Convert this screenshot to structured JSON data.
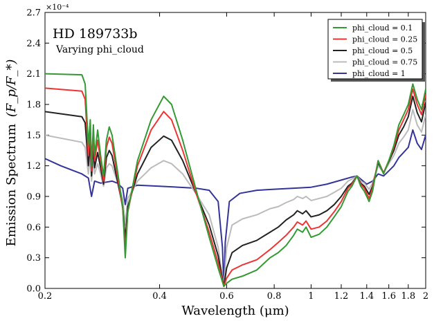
{
  "chart_data": {
    "type": "line",
    "xscale": "log",
    "xlabel": "Wavelength (μm)",
    "ylabel_main": "Emission Spectrum",
    "ylabel_math": "(F_p/F_*)",
    "offset_text": "×10⁻⁴",
    "xlim": [
      0.2,
      2.0
    ],
    "ylim": [
      0,
      2.7
    ],
    "x_ticks": [
      0.2,
      0.4,
      0.6,
      0.8,
      1.0,
      1.2,
      1.4,
      1.6,
      1.8,
      2.0
    ],
    "x_tick_labels": [
      "0.2",
      "0.4",
      "0.6",
      "0.8",
      "1",
      "1.2",
      "1.4",
      "1.6",
      "1.8",
      "2"
    ],
    "y_ticks": [
      0.0,
      0.3,
      0.6,
      0.9,
      1.2,
      1.5,
      1.8,
      2.1,
      2.4,
      2.7
    ],
    "y_tick_labels": [
      "0.0",
      "0.3",
      "0.6",
      "0.9",
      "1.2",
      "1.5",
      "1.8",
      "2.1",
      "2.4",
      "2.7"
    ],
    "annotations": [
      {
        "text": "HD 189733b",
        "size": "large"
      },
      {
        "text": "Varying phi_cloud",
        "size": "medium"
      }
    ],
    "legend_position": "top-right",
    "series": [
      {
        "name": "phi_cloud = 0.1",
        "color": "#339933",
        "points": [
          [
            0.2,
            2.1
          ],
          [
            0.25,
            2.09
          ],
          [
            0.255,
            2.0
          ],
          [
            0.26,
            1.4
          ],
          [
            0.263,
            1.65
          ],
          [
            0.265,
            1.2
          ],
          [
            0.268,
            1.6
          ],
          [
            0.27,
            1.3
          ],
          [
            0.275,
            1.55
          ],
          [
            0.28,
            1.3
          ],
          [
            0.285,
            1.1
          ],
          [
            0.29,
            1.45
          ],
          [
            0.295,
            1.58
          ],
          [
            0.3,
            1.5
          ],
          [
            0.31,
            1.15
          ],
          [
            0.32,
            0.8
          ],
          [
            0.325,
            0.3
          ],
          [
            0.33,
            0.75
          ],
          [
            0.35,
            1.25
          ],
          [
            0.38,
            1.65
          ],
          [
            0.41,
            1.88
          ],
          [
            0.43,
            1.8
          ],
          [
            0.46,
            1.45
          ],
          [
            0.5,
            0.95
          ],
          [
            0.54,
            0.5
          ],
          [
            0.57,
            0.2
          ],
          [
            0.59,
            0.02
          ],
          [
            0.6,
            0.05
          ],
          [
            0.62,
            0.09
          ],
          [
            0.66,
            0.12
          ],
          [
            0.72,
            0.18
          ],
          [
            0.78,
            0.3
          ],
          [
            0.82,
            0.35
          ],
          [
            0.86,
            0.42
          ],
          [
            0.9,
            0.52
          ],
          [
            0.92,
            0.58
          ],
          [
            0.95,
            0.55
          ],
          [
            0.97,
            0.6
          ],
          [
            1.0,
            0.5
          ],
          [
            1.05,
            0.53
          ],
          [
            1.1,
            0.6
          ],
          [
            1.15,
            0.7
          ],
          [
            1.2,
            0.8
          ],
          [
            1.25,
            0.95
          ],
          [
            1.28,
            1.0
          ],
          [
            1.32,
            1.1
          ],
          [
            1.35,
            1.0
          ],
          [
            1.38,
            0.95
          ],
          [
            1.42,
            0.85
          ],
          [
            1.45,
            0.95
          ],
          [
            1.5,
            1.25
          ],
          [
            1.55,
            1.12
          ],
          [
            1.6,
            1.25
          ],
          [
            1.65,
            1.4
          ],
          [
            1.7,
            1.6
          ],
          [
            1.75,
            1.7
          ],
          [
            1.8,
            1.8
          ],
          [
            1.85,
            2.0
          ],
          [
            1.9,
            1.85
          ],
          [
            1.95,
            1.75
          ],
          [
            2.0,
            1.95
          ]
        ]
      },
      {
        "name": "phi_cloud = 0.25",
        "color": "#ee3333",
        "points": [
          [
            0.2,
            1.96
          ],
          [
            0.25,
            1.93
          ],
          [
            0.255,
            1.85
          ],
          [
            0.26,
            1.3
          ],
          [
            0.263,
            1.55
          ],
          [
            0.265,
            1.15
          ],
          [
            0.268,
            1.5
          ],
          [
            0.27,
            1.25
          ],
          [
            0.275,
            1.45
          ],
          [
            0.28,
            1.25
          ],
          [
            0.285,
            1.05
          ],
          [
            0.29,
            1.38
          ],
          [
            0.295,
            1.48
          ],
          [
            0.3,
            1.42
          ],
          [
            0.31,
            1.1
          ],
          [
            0.32,
            0.78
          ],
          [
            0.325,
            0.38
          ],
          [
            0.33,
            0.75
          ],
          [
            0.35,
            1.2
          ],
          [
            0.38,
            1.55
          ],
          [
            0.41,
            1.73
          ],
          [
            0.43,
            1.65
          ],
          [
            0.46,
            1.35
          ],
          [
            0.5,
            0.92
          ],
          [
            0.54,
            0.55
          ],
          [
            0.57,
            0.25
          ],
          [
            0.59,
            0.02
          ],
          [
            0.6,
            0.1
          ],
          [
            0.62,
            0.18
          ],
          [
            0.66,
            0.23
          ],
          [
            0.72,
            0.28
          ],
          [
            0.78,
            0.38
          ],
          [
            0.82,
            0.45
          ],
          [
            0.86,
            0.52
          ],
          [
            0.9,
            0.6
          ],
          [
            0.92,
            0.65
          ],
          [
            0.95,
            0.62
          ],
          [
            0.97,
            0.66
          ],
          [
            1.0,
            0.58
          ],
          [
            1.05,
            0.6
          ],
          [
            1.1,
            0.66
          ],
          [
            1.15,
            0.75
          ],
          [
            1.2,
            0.85
          ],
          [
            1.25,
            0.98
          ],
          [
            1.28,
            1.02
          ],
          [
            1.32,
            1.1
          ],
          [
            1.35,
            1.02
          ],
          [
            1.38,
            0.98
          ],
          [
            1.42,
            0.88
          ],
          [
            1.45,
            0.98
          ],
          [
            1.5,
            1.25
          ],
          [
            1.55,
            1.13
          ],
          [
            1.6,
            1.25
          ],
          [
            1.65,
            1.38
          ],
          [
            1.7,
            1.55
          ],
          [
            1.75,
            1.65
          ],
          [
            1.8,
            1.75
          ],
          [
            1.85,
            1.95
          ],
          [
            1.9,
            1.8
          ],
          [
            1.95,
            1.7
          ],
          [
            2.0,
            1.9
          ]
        ]
      },
      {
        "name": "phi_cloud = 0.5",
        "color": "#222222",
        "points": [
          [
            0.2,
            1.73
          ],
          [
            0.25,
            1.68
          ],
          [
            0.255,
            1.62
          ],
          [
            0.26,
            1.2
          ],
          [
            0.263,
            1.42
          ],
          [
            0.265,
            1.1
          ],
          [
            0.268,
            1.38
          ],
          [
            0.27,
            1.18
          ],
          [
            0.275,
            1.33
          ],
          [
            0.28,
            1.18
          ],
          [
            0.285,
            1.02
          ],
          [
            0.29,
            1.28
          ],
          [
            0.295,
            1.35
          ],
          [
            0.3,
            1.3
          ],
          [
            0.31,
            1.05
          ],
          [
            0.32,
            0.8
          ],
          [
            0.325,
            0.48
          ],
          [
            0.33,
            0.8
          ],
          [
            0.35,
            1.12
          ],
          [
            0.38,
            1.38
          ],
          [
            0.41,
            1.49
          ],
          [
            0.43,
            1.45
          ],
          [
            0.46,
            1.25
          ],
          [
            0.5,
            0.92
          ],
          [
            0.54,
            0.62
          ],
          [
            0.57,
            0.32
          ],
          [
            0.59,
            0.02
          ],
          [
            0.6,
            0.2
          ],
          [
            0.62,
            0.35
          ],
          [
            0.66,
            0.42
          ],
          [
            0.72,
            0.47
          ],
          [
            0.78,
            0.55
          ],
          [
            0.82,
            0.6
          ],
          [
            0.86,
            0.67
          ],
          [
            0.9,
            0.72
          ],
          [
            0.92,
            0.76
          ],
          [
            0.95,
            0.73
          ],
          [
            0.97,
            0.76
          ],
          [
            1.0,
            0.7
          ],
          [
            1.05,
            0.72
          ],
          [
            1.1,
            0.76
          ],
          [
            1.15,
            0.82
          ],
          [
            1.2,
            0.9
          ],
          [
            1.25,
            1.0
          ],
          [
            1.28,
            1.03
          ],
          [
            1.32,
            1.1
          ],
          [
            1.35,
            1.03
          ],
          [
            1.38,
            1.0
          ],
          [
            1.42,
            0.92
          ],
          [
            1.45,
            1.0
          ],
          [
            1.5,
            1.23
          ],
          [
            1.55,
            1.13
          ],
          [
            1.6,
            1.24
          ],
          [
            1.65,
            1.35
          ],
          [
            1.7,
            1.5
          ],
          [
            1.75,
            1.58
          ],
          [
            1.8,
            1.68
          ],
          [
            1.85,
            1.88
          ],
          [
            1.9,
            1.72
          ],
          [
            1.95,
            1.63
          ],
          [
            2.0,
            1.82
          ]
        ]
      },
      {
        "name": "phi_cloud = 0.75",
        "color": "#bbbbbb",
        "points": [
          [
            0.2,
            1.5
          ],
          [
            0.25,
            1.43
          ],
          [
            0.255,
            1.38
          ],
          [
            0.26,
            1.12
          ],
          [
            0.263,
            1.3
          ],
          [
            0.265,
            1.05
          ],
          [
            0.268,
            1.26
          ],
          [
            0.27,
            1.12
          ],
          [
            0.275,
            1.22
          ],
          [
            0.28,
            1.12
          ],
          [
            0.285,
            1.0
          ],
          [
            0.29,
            1.18
          ],
          [
            0.295,
            1.22
          ],
          [
            0.3,
            1.2
          ],
          [
            0.31,
            1.04
          ],
          [
            0.32,
            0.88
          ],
          [
            0.325,
            0.62
          ],
          [
            0.33,
            0.88
          ],
          [
            0.35,
            1.05
          ],
          [
            0.38,
            1.18
          ],
          [
            0.41,
            1.25
          ],
          [
            0.43,
            1.22
          ],
          [
            0.46,
            1.12
          ],
          [
            0.5,
            0.92
          ],
          [
            0.54,
            0.72
          ],
          [
            0.57,
            0.4
          ],
          [
            0.59,
            0.02
          ],
          [
            0.6,
            0.4
          ],
          [
            0.62,
            0.62
          ],
          [
            0.66,
            0.68
          ],
          [
            0.72,
            0.72
          ],
          [
            0.78,
            0.78
          ],
          [
            0.82,
            0.8
          ],
          [
            0.86,
            0.84
          ],
          [
            0.9,
            0.87
          ],
          [
            0.92,
            0.9
          ],
          [
            0.95,
            0.88
          ],
          [
            0.97,
            0.9
          ],
          [
            1.0,
            0.86
          ],
          [
            1.05,
            0.88
          ],
          [
            1.1,
            0.9
          ],
          [
            1.15,
            0.94
          ],
          [
            1.2,
            0.98
          ],
          [
            1.25,
            1.05
          ],
          [
            1.28,
            1.07
          ],
          [
            1.32,
            1.1
          ],
          [
            1.35,
            1.05
          ],
          [
            1.38,
            1.03
          ],
          [
            1.42,
            0.97
          ],
          [
            1.45,
            1.03
          ],
          [
            1.5,
            1.2
          ],
          [
            1.55,
            1.13
          ],
          [
            1.6,
            1.22
          ],
          [
            1.65,
            1.3
          ],
          [
            1.7,
            1.42
          ],
          [
            1.75,
            1.48
          ],
          [
            1.8,
            1.55
          ],
          [
            1.85,
            1.75
          ],
          [
            1.9,
            1.6
          ],
          [
            1.95,
            1.53
          ],
          [
            2.0,
            1.7
          ]
        ]
      },
      {
        "name": "phi_cloud = 1",
        "color": "#333399",
        "points": [
          [
            0.2,
            1.27
          ],
          [
            0.22,
            1.2
          ],
          [
            0.25,
            1.12
          ],
          [
            0.26,
            1.08
          ],
          [
            0.265,
            0.9
          ],
          [
            0.27,
            1.05
          ],
          [
            0.28,
            1.03
          ],
          [
            0.29,
            1.04
          ],
          [
            0.3,
            1.05
          ],
          [
            0.31,
            1.03
          ],
          [
            0.32,
            0.98
          ],
          [
            0.325,
            0.82
          ],
          [
            0.33,
            0.98
          ],
          [
            0.35,
            1.01
          ],
          [
            0.4,
            1.0
          ],
          [
            0.45,
            0.99
          ],
          [
            0.5,
            0.98
          ],
          [
            0.54,
            0.96
          ],
          [
            0.57,
            0.85
          ],
          [
            0.585,
            0.4
          ],
          [
            0.59,
            0.02
          ],
          [
            0.595,
            0.45
          ],
          [
            0.61,
            0.85
          ],
          [
            0.65,
            0.93
          ],
          [
            0.72,
            0.96
          ],
          [
            0.8,
            0.97
          ],
          [
            0.9,
            0.98
          ],
          [
            1.0,
            0.99
          ],
          [
            1.1,
            1.02
          ],
          [
            1.2,
            1.06
          ],
          [
            1.28,
            1.09
          ],
          [
            1.32,
            1.1
          ],
          [
            1.35,
            1.07
          ],
          [
            1.4,
            1.02
          ],
          [
            1.45,
            1.05
          ],
          [
            1.5,
            1.12
          ],
          [
            1.55,
            1.1
          ],
          [
            1.6,
            1.15
          ],
          [
            1.65,
            1.2
          ],
          [
            1.7,
            1.28
          ],
          [
            1.75,
            1.33
          ],
          [
            1.8,
            1.38
          ],
          [
            1.85,
            1.55
          ],
          [
            1.9,
            1.42
          ],
          [
            1.95,
            1.36
          ],
          [
            2.0,
            1.5
          ]
        ]
      }
    ]
  }
}
